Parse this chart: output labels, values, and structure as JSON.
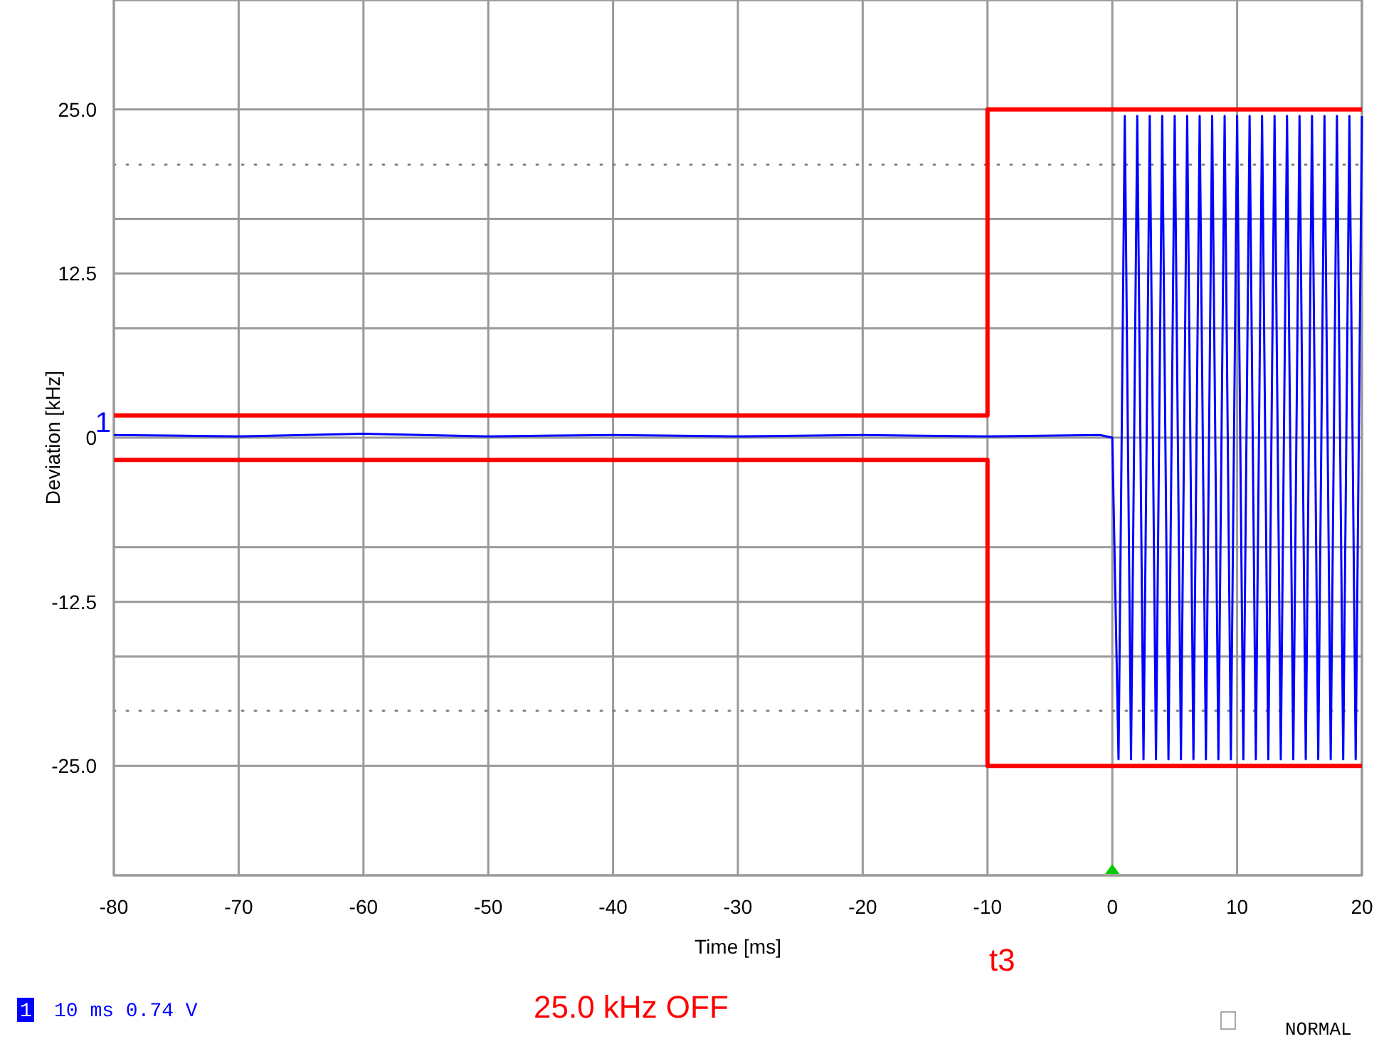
{
  "chart_data": {
    "type": "line",
    "xlabel": "Time [ms]",
    "ylabel": "Deviation [kHz]",
    "xlim": [
      -80,
      20
    ],
    "xticks": [
      -80,
      -70,
      -60,
      -50,
      -40,
      -30,
      -20,
      -10,
      0,
      10,
      20
    ],
    "ylim": [
      -33.33,
      33.33
    ],
    "yticks": [
      {
        "value": -33.33,
        "label": null
      },
      {
        "value": -25,
        "label": "-25.0"
      },
      {
        "value": -16.67,
        "label": null
      },
      {
        "value": -12.5,
        "label": "-12.5"
      },
      {
        "value": -8.33,
        "label": null
      },
      {
        "value": 0,
        "label": "0"
      },
      {
        "value": 8.33,
        "label": null
      },
      {
        "value": 12.5,
        "label": "12.5"
      },
      {
        "value": 16.67,
        "label": null
      },
      {
        "value": 25,
        "label": "25.0"
      },
      {
        "value": 33.33,
        "label": null
      }
    ],
    "grid": true,
    "marker": "none",
    "line_style": "solid",
    "ref_lines": [
      {
        "axis": "y",
        "value": 20.8,
        "color": "#808080",
        "line_style": "dotted"
      },
      {
        "axis": "y",
        "value": -20.8,
        "color": "#808080",
        "line_style": "dotted"
      }
    ],
    "series": [
      {
        "color": "#ff0000",
        "x": [
          -80,
          -10,
          -10,
          20
        ],
        "values": [
          1.7,
          1.7,
          25,
          25
        ]
      },
      {
        "color": "#ff0000",
        "x": [
          -80,
          -10,
          -10,
          20
        ],
        "values": [
          -1.7,
          -1.7,
          -25,
          -25
        ]
      },
      {
        "color": "#0000ff",
        "x": [
          -80,
          -70,
          -60,
          -50,
          -40,
          -30,
          -20,
          -10,
          -1,
          0,
          0.5,
          1,
          1.5,
          2,
          2.5,
          3,
          3.5,
          4,
          4.5,
          5,
          5.5,
          6,
          6.5,
          7,
          7.5,
          8,
          8.5,
          9,
          9.5,
          10,
          10.5,
          11,
          11.5,
          12,
          12.5,
          13,
          13.5,
          14,
          14.5,
          15,
          15.5,
          16,
          16.5,
          17,
          17.5,
          18,
          18.5,
          19,
          19.5,
          20
        ],
        "values": [
          0.2,
          0.1,
          0.3,
          0.1,
          0.2,
          0.1,
          0.2,
          0.1,
          0.2,
          0,
          -24.5,
          24.5,
          -24.5,
          24.5,
          -24.5,
          24.5,
          -24.5,
          24.5,
          -24.5,
          24.5,
          -24.5,
          24.5,
          -24.5,
          24.5,
          -24.5,
          24.5,
          -24.5,
          24.5,
          -24.5,
          24.5,
          -24.5,
          24.5,
          -24.5,
          24.5,
          -24.5,
          24.5,
          -24.5,
          24.5,
          -24.5,
          24.5,
          -24.5,
          24.5,
          -24.5,
          24.5,
          -24.5,
          24.5,
          -24.5,
          24.5,
          -24.5,
          24.5
        ]
      }
    ],
    "annotations": [
      {
        "text": "1",
        "x": -80,
        "y": 0
      },
      "t3",
      "25.0 kHz OFF",
      "1",
      "10 ms 0.74 V",
      "NORMAL"
    ]
  }
}
